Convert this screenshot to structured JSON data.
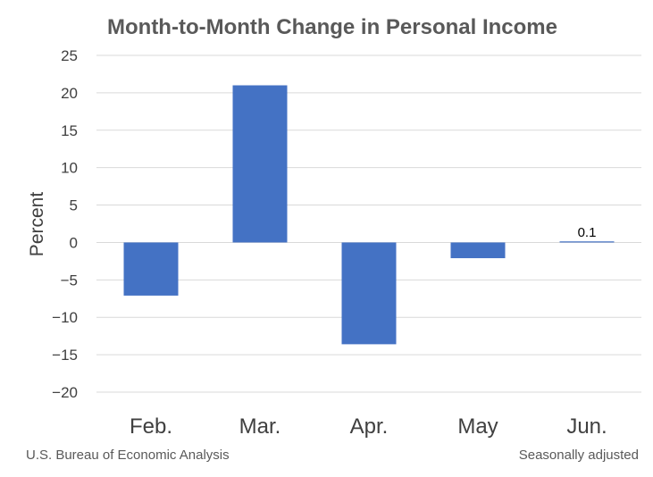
{
  "chart_data": {
    "type": "bar",
    "title": "Month-to-Month Change in Personal Income",
    "xlabel": "",
    "ylabel": "Percent",
    "categories": [
      "Feb.",
      "Mar.",
      "Apr.",
      "May",
      "Jun."
    ],
    "values": [
      -7.1,
      21.0,
      -13.6,
      -2.1,
      0.1
    ],
    "data_labels": [
      "",
      "",
      "",
      "",
      "0.1"
    ],
    "ylim": [
      -20,
      25
    ],
    "yticks": [
      25,
      20,
      15,
      10,
      5,
      0,
      -5,
      -10,
      -15,
      -20
    ],
    "grid": true,
    "bar_color": "#4472c4"
  },
  "footer": {
    "source": "U.S. Bureau of Economic Analysis",
    "note": "Seasonally adjusted"
  }
}
